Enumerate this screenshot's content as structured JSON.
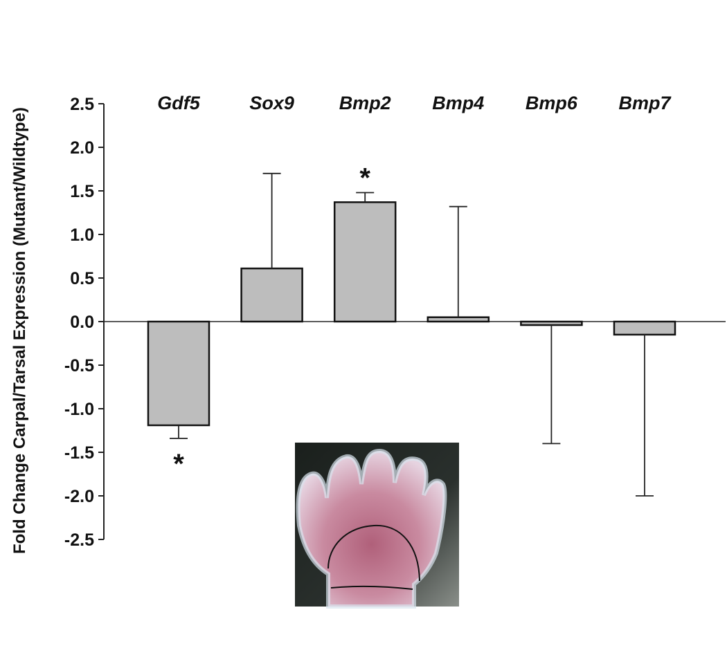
{
  "chart_data": {
    "type": "bar",
    "ylabel": "Fold Change Carpal/Tarsal Expression (Mutant/Wildtype)",
    "xlabel": "",
    "ylim": [
      -2.5,
      2.5
    ],
    "yticks": [
      "2.5",
      "2.0",
      "1.5",
      "1.0",
      "0.5",
      "0.0",
      "-0.5",
      "-1.0",
      "-1.5",
      "-2.0",
      "-2.5"
    ],
    "categories": [
      "Gdf5",
      "Sox9",
      "Bmp2",
      "Bmp4",
      "Bmp6",
      "Bmp7"
    ],
    "values": [
      -1.19,
      0.61,
      1.37,
      0.05,
      -0.04,
      -0.15
    ],
    "errors": [
      0.15,
      1.09,
      0.11,
      1.27,
      1.36,
      1.85
    ],
    "significant": [
      "*",
      "",
      "*",
      "",
      "",
      ""
    ],
    "bar_color": "#bdbdbd",
    "grid": false
  },
  "inset": {
    "description_icon": "mouse-paw-photo"
  }
}
